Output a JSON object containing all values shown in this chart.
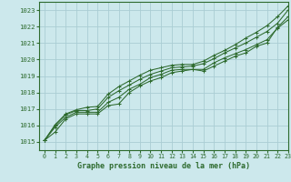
{
  "title": "Graphe pression niveau de la mer (hPa)",
  "bg_color": "#cce8ec",
  "plot_bg_color": "#cce8ec",
  "line_color": "#2d6a2d",
  "grid_color": "#aacdd4",
  "xlim": [
    -0.5,
    23
  ],
  "ylim": [
    1014.5,
    1023.5
  ],
  "yticks": [
    1015,
    1016,
    1017,
    1018,
    1019,
    1020,
    1021,
    1022,
    1023
  ],
  "xticks": [
    0,
    1,
    2,
    3,
    4,
    5,
    6,
    7,
    8,
    9,
    10,
    11,
    12,
    13,
    14,
    15,
    16,
    17,
    18,
    19,
    20,
    21,
    22,
    23
  ],
  "series": [
    [
      1015.1,
      1015.6,
      1016.4,
      1016.7,
      1016.7,
      1016.7,
      1017.2,
      1017.3,
      1018.0,
      1018.4,
      1018.7,
      1018.9,
      1019.2,
      1019.3,
      1019.4,
      1019.3,
      1019.6,
      1019.9,
      1020.2,
      1020.4,
      1020.8,
      1021.0,
      1021.95,
      1022.6
    ],
    [
      1015.1,
      1015.9,
      1016.5,
      1016.8,
      1016.8,
      1016.8,
      1017.4,
      1017.7,
      1018.2,
      1018.5,
      1018.9,
      1019.1,
      1019.35,
      1019.4,
      1019.4,
      1019.4,
      1019.8,
      1020.1,
      1020.35,
      1020.6,
      1020.9,
      1021.2,
      1021.9,
      1022.4
    ],
    [
      1015.1,
      1016.0,
      1016.65,
      1016.9,
      1016.9,
      1017.0,
      1017.7,
      1018.1,
      1018.45,
      1018.8,
      1019.1,
      1019.3,
      1019.5,
      1019.55,
      1019.6,
      1019.75,
      1020.05,
      1020.4,
      1020.7,
      1021.0,
      1021.35,
      1021.7,
      1022.2,
      1023.0
    ],
    [
      1015.1,
      1016.05,
      1016.7,
      1016.95,
      1017.1,
      1017.15,
      1017.9,
      1018.35,
      1018.7,
      1019.05,
      1019.35,
      1019.5,
      1019.65,
      1019.7,
      1019.7,
      1019.9,
      1020.25,
      1020.55,
      1020.9,
      1021.3,
      1021.65,
      1022.05,
      1022.6,
      1023.25
    ]
  ]
}
